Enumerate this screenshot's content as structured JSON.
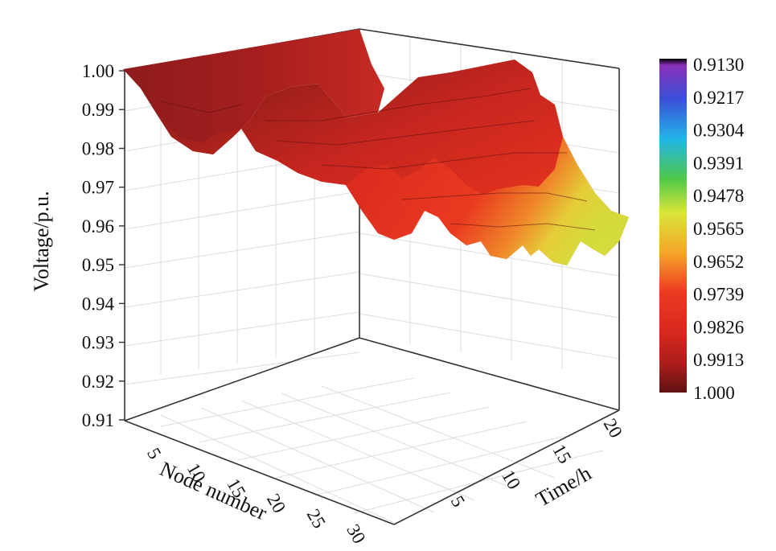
{
  "chart_data": {
    "type": "surface3d",
    "title": "",
    "zlabel": "Voltage/p.u.",
    "xlabel": "Node number",
    "ylabel": "Time/h",
    "zlim": [
      0.91,
      1.0
    ],
    "z_ticks": [
      "0.91",
      "0.92",
      "0.93",
      "0.94",
      "0.95",
      "0.96",
      "0.97",
      "0.98",
      "0.99",
      "1.00"
    ],
    "node_ticks": [
      "5",
      "10",
      "15",
      "20",
      "25",
      "30"
    ],
    "time_ticks": [
      "5",
      "10",
      "15",
      "20"
    ],
    "colorbar": {
      "labels": [
        "0.9130",
        "0.9217",
        "0.9304",
        "0.9391",
        "0.9478",
        "0.9565",
        "0.9652",
        "0.9739",
        "0.9826",
        "0.9913",
        "1.000"
      ],
      "colors": [
        "#000000",
        "#7a2fb8",
        "#3a4fd8",
        "#22b5e8",
        "#4fc84a",
        "#d9e63a",
        "#f4a62a",
        "#e8321f",
        "#d8281f",
        "#b81f1f",
        "#6b1414"
      ]
    },
    "grid": true,
    "surface_profiles": {
      "node_min_voltage": [
        {
          "node": 1,
          "voltage": 1.0
        },
        {
          "node": 5,
          "voltage": 0.995
        },
        {
          "node": 10,
          "voltage": 0.982
        },
        {
          "node": 15,
          "voltage": 0.978
        },
        {
          "node": 18,
          "voltage": 0.988
        },
        {
          "node": 22,
          "voltage": 0.973
        },
        {
          "node": 26,
          "voltage": 0.962
        },
        {
          "node": 30,
          "voltage": 0.955
        },
        {
          "node": 33,
          "voltage": 0.958
        }
      ]
    }
  }
}
